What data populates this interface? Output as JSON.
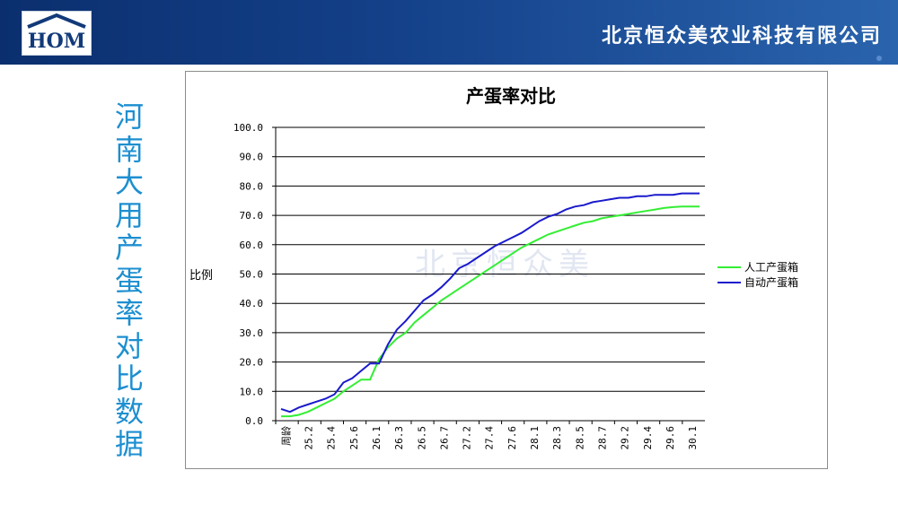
{
  "header": {
    "logo_text": "HOM",
    "company": "北京恒众美农业科技有限公司"
  },
  "side_title": "河南大用产蛋率对比数据",
  "watermark": "北京恒众美",
  "colors": {
    "header_dark": "#0b2f6e",
    "side_title": "#1d8fd0",
    "series_manual": "#33ee33",
    "series_auto": "#1a1acc"
  },
  "chart_data": {
    "type": "line",
    "title": "产蛋率对比",
    "ylabel": "比例",
    "xlabel": "",
    "ylim": [
      0,
      100
    ],
    "yticks": [
      "0.0",
      "10.0",
      "20.0",
      "30.0",
      "40.0",
      "50.0",
      "60.0",
      "70.0",
      "80.0",
      "90.0",
      "100.0"
    ],
    "grid": "horizontal",
    "legend_position": "right",
    "x_tick_labels": [
      "周龄",
      "25.2",
      "25.4",
      "25.6",
      "26.1",
      "26.3",
      "26.5",
      "26.7",
      "27.2",
      "27.4",
      "27.6",
      "28.1",
      "28.3",
      "28.5",
      "28.7",
      "29.2",
      "29.4",
      "29.6",
      "30.1"
    ],
    "series": [
      {
        "name": "人工产蛋箱",
        "color": "#33ee33",
        "values": [
          1.5,
          1.5,
          2,
          3,
          4.5,
          6,
          7.5,
          10,
          12,
          14,
          14,
          21,
          25,
          28,
          30,
          33.5,
          36,
          38.5,
          41,
          43,
          45,
          47,
          49,
          51,
          53,
          55,
          57,
          59,
          60.5,
          62,
          63.5,
          64.5,
          65.5,
          66.5,
          67.5,
          68,
          69,
          69.5,
          70,
          70.5,
          71,
          71.5,
          72,
          72.5,
          72.8,
          73,
          73,
          73
        ]
      },
      {
        "name": "自动产蛋箱",
        "color": "#1a1acc",
        "values": [
          4,
          3,
          4.5,
          5.5,
          6.5,
          7.5,
          9,
          13,
          14.5,
          17,
          19.5,
          19.5,
          26,
          31,
          34,
          37.5,
          41,
          43,
          45.5,
          48.5,
          52,
          53.5,
          55.5,
          57.5,
          59.5,
          61,
          62.5,
          64,
          66,
          68,
          69.5,
          70.5,
          72,
          73,
          73.5,
          74.5,
          75,
          75.5,
          76,
          76,
          76.5,
          76.5,
          77,
          77,
          77,
          77.5,
          77.5,
          77.5
        ]
      }
    ]
  }
}
